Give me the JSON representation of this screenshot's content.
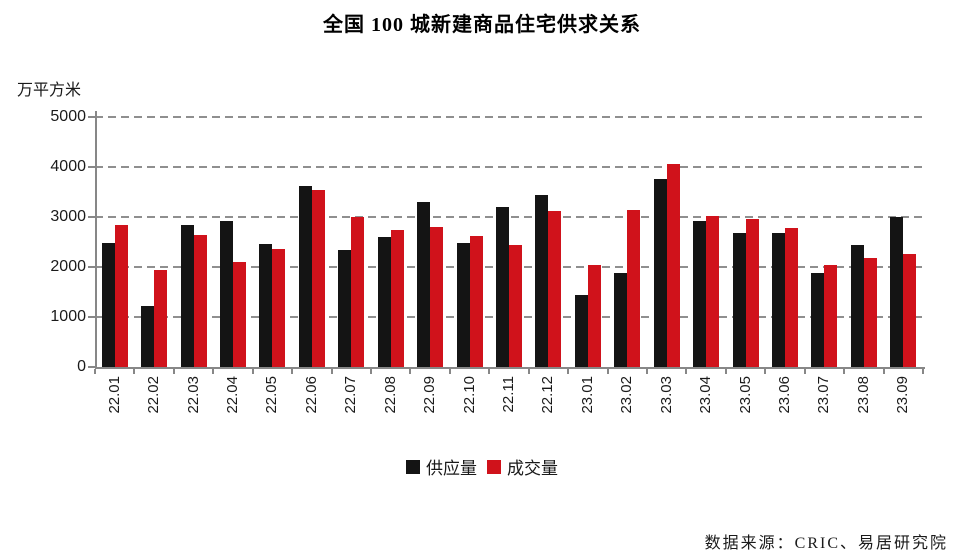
{
  "chart": {
    "title": "全国 100 城新建商品住宅供求关系",
    "unit_label": "万平方米",
    "source": "数据来源：CRIC、易居研究院",
    "series_names": [
      "供应量",
      "成交量"
    ],
    "colors": {
      "supply": "#141414",
      "deals": "#d0121b",
      "grid": "#8f8f8f",
      "axis": "#878787",
      "text": "#1a1a1a"
    }
  },
  "chart_data": {
    "type": "bar",
    "title": "全国 100 城新建商品住宅供求关系",
    "ylabel": "万平方米",
    "xlabel": "",
    "categories": [
      "22.01",
      "22.02",
      "22.03",
      "22.04",
      "22.05",
      "22.06",
      "22.07",
      "22.08",
      "22.09",
      "22.10",
      "22.11",
      "22.12",
      "23.01",
      "23.02",
      "23.03",
      "23.04",
      "23.05",
      "23.06",
      "23.07",
      "23.08",
      "23.09"
    ],
    "series": [
      {
        "name": "供应量",
        "color": "#141414",
        "values": [
          2470,
          1210,
          2840,
          2910,
          2450,
          3610,
          2330,
          2600,
          3290,
          2470,
          3190,
          3430,
          1430,
          1880,
          3760,
          2910,
          2670,
          2670,
          1870,
          2430,
          2990
        ]
      },
      {
        "name": "成交量",
        "color": "#d0121b",
        "values": [
          2830,
          1930,
          2640,
          2090,
          2360,
          3540,
          2990,
          2730,
          2790,
          2610,
          2440,
          3120,
          2030,
          3130,
          4060,
          3010,
          2960,
          2770,
          2040,
          2180,
          2250
        ]
      }
    ],
    "ylim": [
      0,
      5000
    ],
    "yticks": [
      0,
      1000,
      2000,
      3000,
      4000,
      5000
    ],
    "grid": true,
    "grid_style": "dashed",
    "legend_position": "bottom",
    "source": "数据来源：CRIC、易居研究院"
  }
}
